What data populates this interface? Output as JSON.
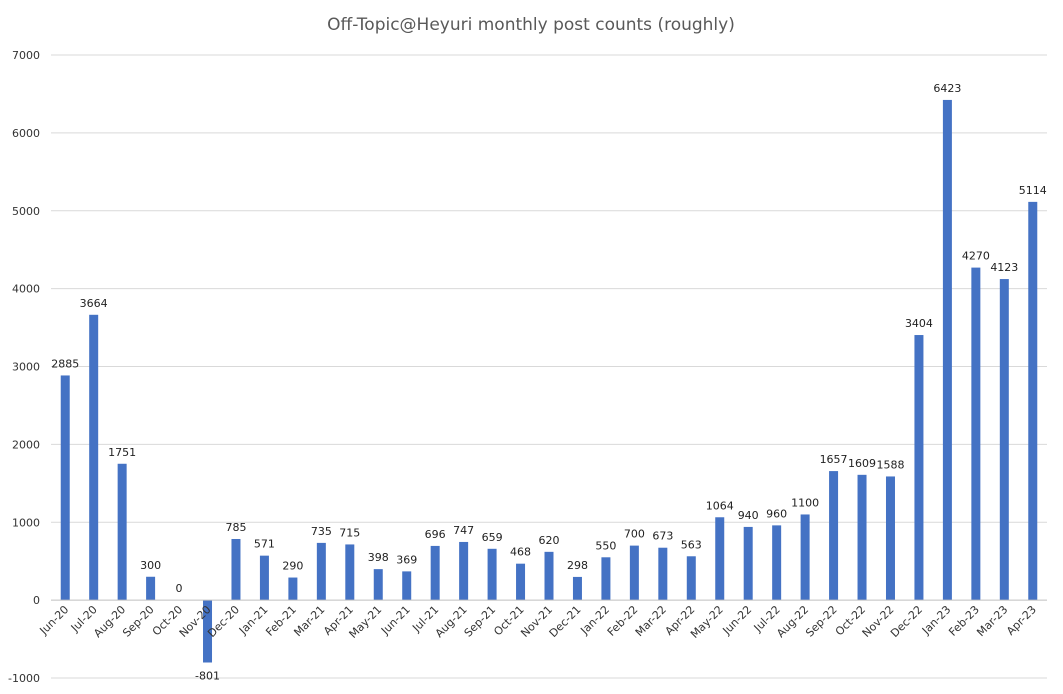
{
  "chart_data": {
    "type": "bar",
    "title": "Off-Topic@Heyuri monthly post counts (roughly)",
    "xlabel": "",
    "ylabel": "",
    "ylim": [
      -1000,
      7000
    ],
    "yticks": [
      -1000,
      0,
      1000,
      2000,
      3000,
      4000,
      5000,
      6000,
      7000
    ],
    "grid": true,
    "legend": "none",
    "bar_color": "#4472C4",
    "categories": [
      "Jun-20",
      "Jul-20",
      "Aug-20",
      "Sep-20",
      "Oct-20",
      "Nov-20",
      "Dec-20",
      "Jan-21",
      "Feb-21",
      "Mar-21",
      "Apr-21",
      "May-21",
      "Jun-21",
      "Jul-21",
      "Aug-21",
      "Sep-21",
      "Oct-21",
      "Nov-21",
      "Dec-21",
      "Jan-22",
      "Feb-22",
      "Mar-22",
      "Apr-22",
      "May-22",
      "Jun-22",
      "Jul-22",
      "Aug-22",
      "Sep-22",
      "Oct-22",
      "Nov-22",
      "Dec-22",
      "Jan-23",
      "Feb-23",
      "Mar-23",
      "Apr-23"
    ],
    "values": [
      2885,
      3664,
      1751,
      300,
      0,
      -801,
      785,
      571,
      290,
      735,
      715,
      398,
      369,
      696,
      747,
      659,
      468,
      620,
      298,
      550,
      700,
      673,
      563,
      1064,
      940,
      960,
      1100,
      1657,
      1609,
      1588,
      3404,
      6423,
      4270,
      4123,
      5114
    ]
  }
}
